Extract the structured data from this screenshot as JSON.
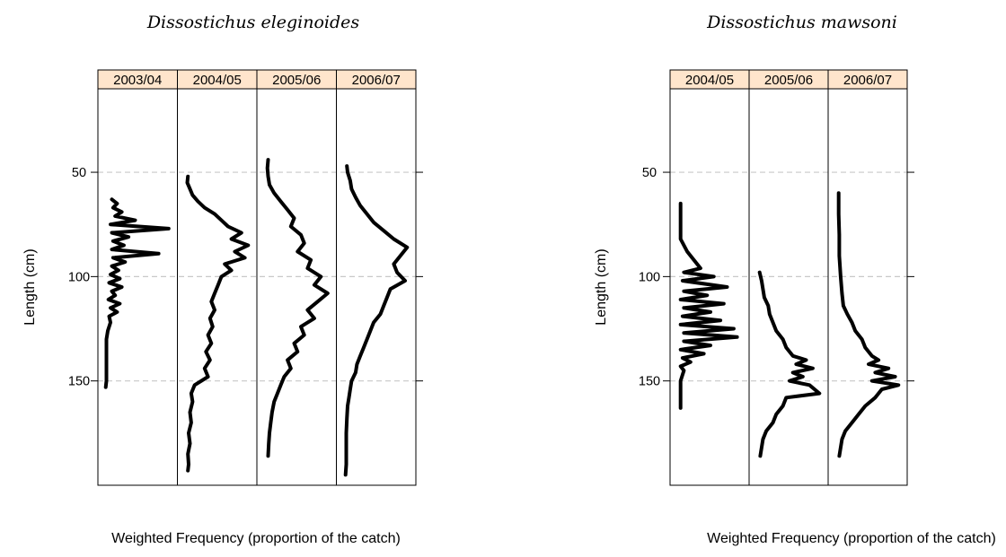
{
  "chart_data": [
    {
      "type": "line",
      "title": "Dissostichus eleginoides",
      "xlabel": "Weighted Frequency (proportion of the catch)",
      "ylabel": "Length (cm)",
      "ylim": [
        200,
        10
      ],
      "y_reversed": true,
      "yticks": [
        50,
        100,
        150
      ],
      "grid_y": true,
      "panels": [
        {
          "name": "2003/04",
          "points": [
            [
              0.1,
              63
            ],
            [
              0.18,
              65
            ],
            [
              0.12,
              67
            ],
            [
              0.25,
              69
            ],
            [
              0.15,
              71
            ],
            [
              0.45,
              73
            ],
            [
              0.08,
              75
            ],
            [
              0.95,
              77
            ],
            [
              0.1,
              79
            ],
            [
              0.35,
              81
            ],
            [
              0.12,
              83
            ],
            [
              0.28,
              85
            ],
            [
              0.1,
              87
            ],
            [
              0.8,
              89
            ],
            [
              0.12,
              91
            ],
            [
              0.3,
              93
            ],
            [
              0.1,
              95
            ],
            [
              0.2,
              97
            ],
            [
              0.08,
              99
            ],
            [
              0.22,
              101
            ],
            [
              0.06,
              103
            ],
            [
              0.25,
              105
            ],
            [
              0.1,
              107
            ],
            [
              0.15,
              109
            ],
            [
              0.05,
              111
            ],
            [
              0.22,
              113
            ],
            [
              0.08,
              115
            ],
            [
              0.18,
              117
            ],
            [
              0.06,
              119
            ],
            [
              0.08,
              122
            ],
            [
              0.04,
              126
            ],
            [
              0.02,
              130
            ],
            [
              0.02,
              140
            ],
            [
              0.02,
              150
            ],
            [
              0.01,
              153
            ]
          ]
        },
        {
          "name": "2004/05",
          "points": [
            [
              0.05,
              52
            ],
            [
              0.04,
              55
            ],
            [
              0.08,
              58
            ],
            [
              0.12,
              61
            ],
            [
              0.2,
              64
            ],
            [
              0.3,
              67
            ],
            [
              0.45,
              70
            ],
            [
              0.55,
              73
            ],
            [
              0.65,
              76
            ],
            [
              0.85,
              79
            ],
            [
              0.7,
              82
            ],
            [
              0.95,
              85
            ],
            [
              0.75,
              88
            ],
            [
              0.9,
              91
            ],
            [
              0.6,
              94
            ],
            [
              0.7,
              97
            ],
            [
              0.55,
              100
            ],
            [
              0.5,
              104
            ],
            [
              0.45,
              108
            ],
            [
              0.4,
              112
            ],
            [
              0.45,
              116
            ],
            [
              0.38,
              120
            ],
            [
              0.42,
              124
            ],
            [
              0.35,
              128
            ],
            [
              0.4,
              132
            ],
            [
              0.32,
              136
            ],
            [
              0.38,
              140
            ],
            [
              0.3,
              144
            ],
            [
              0.35,
              148
            ],
            [
              0.15,
              152
            ],
            [
              0.1,
              156
            ],
            [
              0.12,
              160
            ],
            [
              0.08,
              165
            ],
            [
              0.1,
              170
            ],
            [
              0.06,
              175
            ],
            [
              0.08,
              180
            ],
            [
              0.05,
              185
            ],
            [
              0.06,
              190
            ],
            [
              0.05,
              193
            ]
          ]
        },
        {
          "name": "2005/06",
          "points": [
            [
              0.06,
              44
            ],
            [
              0.05,
              48
            ],
            [
              0.06,
              52
            ],
            [
              0.08,
              56
            ],
            [
              0.15,
              60
            ],
            [
              0.25,
              64
            ],
            [
              0.35,
              68
            ],
            [
              0.45,
              72
            ],
            [
              0.4,
              76
            ],
            [
              0.55,
              80
            ],
            [
              0.6,
              84
            ],
            [
              0.5,
              88
            ],
            [
              0.7,
              92
            ],
            [
              0.65,
              96
            ],
            [
              0.85,
              100
            ],
            [
              0.75,
              104
            ],
            [
              0.95,
              108
            ],
            [
              0.8,
              112
            ],
            [
              0.65,
              116
            ],
            [
              0.75,
              120
            ],
            [
              0.55,
              124
            ],
            [
              0.6,
              128
            ],
            [
              0.45,
              132
            ],
            [
              0.5,
              136
            ],
            [
              0.35,
              140
            ],
            [
              0.4,
              144
            ],
            [
              0.3,
              148
            ],
            [
              0.25,
              152
            ],
            [
              0.2,
              156
            ],
            [
              0.15,
              160
            ],
            [
              0.12,
              165
            ],
            [
              0.1,
              170
            ],
            [
              0.08,
              175
            ],
            [
              0.07,
              180
            ],
            [
              0.06,
              186
            ]
          ]
        },
        {
          "name": "2006/07",
          "points": [
            [
              0.05,
              47
            ],
            [
              0.06,
              50
            ],
            [
              0.1,
              54
            ],
            [
              0.12,
              58
            ],
            [
              0.18,
              62
            ],
            [
              0.25,
              66
            ],
            [
              0.35,
              70
            ],
            [
              0.45,
              74
            ],
            [
              0.6,
              78
            ],
            [
              0.75,
              82
            ],
            [
              0.95,
              86
            ],
            [
              0.85,
              90
            ],
            [
              0.75,
              94
            ],
            [
              0.8,
              98
            ],
            [
              0.92,
              102
            ],
            [
              0.7,
              106
            ],
            [
              0.65,
              110
            ],
            [
              0.6,
              114
            ],
            [
              0.55,
              118
            ],
            [
              0.45,
              122
            ],
            [
              0.4,
              126
            ],
            [
              0.35,
              130
            ],
            [
              0.3,
              134
            ],
            [
              0.25,
              138
            ],
            [
              0.2,
              142
            ],
            [
              0.18,
              146
            ],
            [
              0.12,
              150
            ],
            [
              0.1,
              154
            ],
            [
              0.08,
              158
            ],
            [
              0.06,
              162
            ],
            [
              0.05,
              168
            ],
            [
              0.04,
              175
            ],
            [
              0.04,
              182
            ],
            [
              0.04,
              190
            ],
            [
              0.03,
              195
            ]
          ]
        }
      ]
    },
    {
      "type": "line",
      "title": "Dissostichus mawsoni",
      "xlabel": "Weighted Frequency (proportion of the catch)",
      "ylabel": "Length (cm)",
      "ylim": [
        200,
        10
      ],
      "y_reversed": true,
      "yticks": [
        50,
        100,
        150
      ],
      "grid_y": true,
      "panels": [
        {
          "name": "2004/05",
          "points": [
            [
              0.05,
              65
            ],
            [
              0.05,
              75
            ],
            [
              0.05,
              82
            ],
            [
              0.15,
              88
            ],
            [
              0.35,
              96
            ],
            [
              0.1,
              98
            ],
            [
              0.55,
              100
            ],
            [
              0.08,
              102
            ],
            [
              0.75,
              105
            ],
            [
              0.1,
              107
            ],
            [
              0.45,
              109
            ],
            [
              0.05,
              111
            ],
            [
              0.7,
              113
            ],
            [
              0.1,
              115
            ],
            [
              0.5,
              117
            ],
            [
              0.08,
              119
            ],
            [
              0.65,
              121
            ],
            [
              0.05,
              123
            ],
            [
              0.85,
              125
            ],
            [
              0.1,
              127
            ],
            [
              0.9,
              129
            ],
            [
              0.1,
              131
            ],
            [
              0.5,
              133
            ],
            [
              0.05,
              135
            ],
            [
              0.4,
              137
            ],
            [
              0.08,
              139
            ],
            [
              0.2,
              141
            ],
            [
              0.05,
              143
            ],
            [
              0.1,
              145
            ],
            [
              0.05,
              150
            ],
            [
              0.05,
              160
            ],
            [
              0.05,
              163
            ]
          ]
        },
        {
          "name": "2005/06",
          "points": [
            [
              0.05,
              98
            ],
            [
              0.08,
              102
            ],
            [
              0.1,
              106
            ],
            [
              0.12,
              110
            ],
            [
              0.18,
              114
            ],
            [
              0.2,
              118
            ],
            [
              0.25,
              122
            ],
            [
              0.3,
              126
            ],
            [
              0.4,
              130
            ],
            [
              0.45,
              134
            ],
            [
              0.55,
              138
            ],
            [
              0.75,
              140
            ],
            [
              0.6,
              142
            ],
            [
              0.85,
              144
            ],
            [
              0.55,
              146
            ],
            [
              0.7,
              148
            ],
            [
              0.5,
              150
            ],
            [
              0.8,
              152
            ],
            [
              0.95,
              156
            ],
            [
              0.45,
              158
            ],
            [
              0.4,
              162
            ],
            [
              0.3,
              166
            ],
            [
              0.25,
              170
            ],
            [
              0.15,
              174
            ],
            [
              0.1,
              178
            ],
            [
              0.08,
              182
            ],
            [
              0.06,
              186
            ]
          ]
        },
        {
          "name": "2006/07",
          "points": [
            [
              0.05,
              60
            ],
            [
              0.05,
              70
            ],
            [
              0.06,
              80
            ],
            [
              0.06,
              90
            ],
            [
              0.08,
              100
            ],
            [
              0.1,
              108
            ],
            [
              0.12,
              114
            ],
            [
              0.18,
              118
            ],
            [
              0.25,
              122
            ],
            [
              0.3,
              126
            ],
            [
              0.4,
              130
            ],
            [
              0.45,
              134
            ],
            [
              0.55,
              138
            ],
            [
              0.65,
              140
            ],
            [
              0.5,
              142
            ],
            [
              0.8,
              144
            ],
            [
              0.6,
              146
            ],
            [
              0.9,
              148
            ],
            [
              0.55,
              150
            ],
            [
              0.95,
              152
            ],
            [
              0.7,
              154
            ],
            [
              0.6,
              158
            ],
            [
              0.45,
              162
            ],
            [
              0.35,
              166
            ],
            [
              0.25,
              170
            ],
            [
              0.15,
              174
            ],
            [
              0.1,
              178
            ],
            [
              0.08,
              182
            ],
            [
              0.06,
              186
            ]
          ]
        }
      ]
    }
  ]
}
